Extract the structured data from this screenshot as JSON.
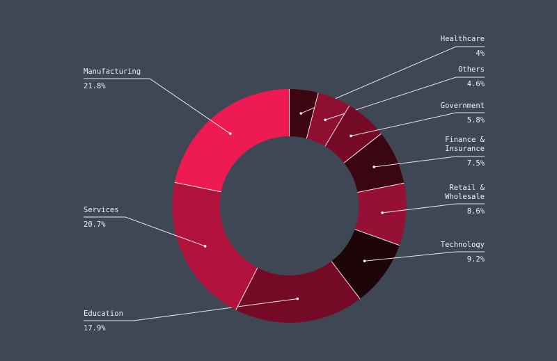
{
  "chart_data": {
    "type": "pie",
    "variant": "donut",
    "start": "top, clockwise",
    "slices": [
      {
        "label": "Healthcare",
        "value": 4,
        "display": "4%",
        "color": "#3c0612"
      },
      {
        "label": "Others",
        "value": 4.6,
        "display": "4.6%",
        "color": "#8e0f32"
      },
      {
        "label": "Government",
        "value": 5.8,
        "display": "5.8%",
        "color": "#740a26"
      },
      {
        "label": "Finance &\nInsurance",
        "value": 7.5,
        "display": "7.5%",
        "color": "#3a0612"
      },
      {
        "label": "Retail &\nWholesale",
        "value": 8.6,
        "display": "8.6%",
        "color": "#960f34"
      },
      {
        "label": "Technology",
        "value": 9.2,
        "display": "9.2%",
        "color": "#1e0509"
      },
      {
        "label": "Education",
        "value": 17.9,
        "display": "17.9%",
        "color": "#740a26"
      },
      {
        "label": "Services",
        "value": 20.7,
        "display": "20.7%",
        "color": "#b0123c"
      },
      {
        "label": "Manufacturing",
        "value": 21.8,
        "display": "21.8%",
        "color": "#ee1a52"
      }
    ]
  }
}
